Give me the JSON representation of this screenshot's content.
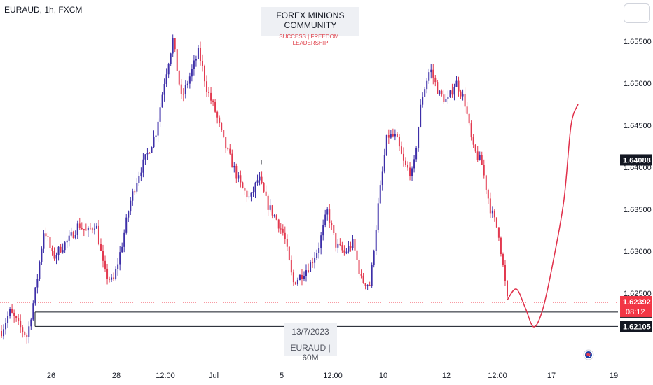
{
  "header": {
    "symbol": "EURAUD, 1h, FXCM"
  },
  "watermark": {
    "title": "FOREX MINIONS COMMUNITY",
    "subtitle": "SUCCESS | FREEDOM | LEADERSHIP"
  },
  "tooltip": {
    "date": "13/7/2023",
    "name": "EURAUD | 60M"
  },
  "colors": {
    "bullish": "#3d2fa8",
    "bearish": "#e2394f",
    "projection": "#e0304a",
    "level_line": "#131722",
    "dark_tag": "#131722",
    "price_tag": "#f23645"
  },
  "chart_data": {
    "type": "candlestick",
    "timeframe": "1h",
    "instrument": "EURAUD",
    "x_ticks": [
      "26",
      "28",
      "12:00",
      "Jul",
      "5",
      "12:00",
      "10",
      "12",
      "12:00",
      "17",
      "19"
    ],
    "y_ticks": [
      "1.65500",
      "1.65000",
      "1.64500",
      "1.64000",
      "1.63500",
      "1.63000",
      "1.62500"
    ],
    "ylim": [
      1.6185,
      1.6575
    ],
    "grid": false,
    "levels": [
      {
        "price": 1.64088,
        "label": "1.64088",
        "style": "solid"
      },
      {
        "price": 1.62276,
        "label": "1.62276",
        "style": "solid"
      },
      {
        "price": 1.62105,
        "label": "1.62105",
        "style": "solid"
      }
    ],
    "current_price": {
      "price": 1.62392,
      "label": "1.62392",
      "countdown": "08:12",
      "style": "dotted"
    },
    "price_path": [
      1.6205,
      1.6228,
      1.6212,
      1.6198,
      1.6255,
      1.6328,
      1.6292,
      1.6305,
      1.6315,
      1.6332,
      1.6322,
      1.6334,
      1.6275,
      1.6262,
      1.6305,
      1.6358,
      1.6392,
      1.6415,
      1.6441,
      1.6502,
      1.6552,
      1.6481,
      1.6509,
      1.6538,
      1.6492,
      1.6465,
      1.6428,
      1.6402,
      1.6376,
      1.6362,
      1.6388,
      1.6356,
      1.634,
      1.6318,
      1.6262,
      1.6272,
      1.6284,
      1.6305,
      1.6348,
      1.6308,
      1.6298,
      1.631,
      1.6265,
      1.626,
      1.636,
      1.6438,
      1.6436,
      1.6402,
      1.6392,
      1.6482,
      1.6518,
      1.6488,
      1.6478,
      1.6502,
      1.648,
      1.6422,
      1.6405,
      1.6352,
      1.6322,
      1.6242
    ],
    "projection_path": [
      1.6242,
      1.6255,
      1.6232,
      1.621,
      1.6232,
      1.629,
      1.6362,
      1.645,
      1.6475
    ]
  }
}
